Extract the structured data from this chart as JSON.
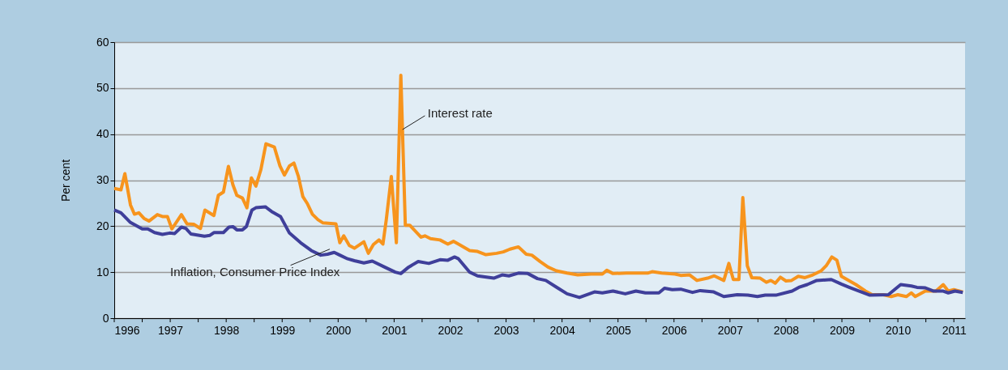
{
  "chart_data": {
    "type": "line",
    "ylabel": "Per cent",
    "xlim": [
      1996,
      2011.2
    ],
    "ylim": [
      0,
      60
    ],
    "yticks": [
      0,
      10,
      20,
      30,
      40,
      50,
      60
    ],
    "xticks": [
      1996,
      {
        "value": 1996.5,
        "label": null
      },
      1997,
      {
        "value": 1997.5,
        "label": null
      },
      1998,
      {
        "value": 1998.5,
        "label": null
      },
      1999,
      {
        "value": 1999.5,
        "label": null
      },
      2000,
      {
        "value": 2000.5,
        "label": null
      },
      2001,
      {
        "value": 2001.5,
        "label": null
      },
      2002,
      {
        "value": 2002.5,
        "label": null
      },
      2003,
      {
        "value": 2003.5,
        "label": null
      },
      2004,
      {
        "value": 2004.5,
        "label": null
      },
      2005,
      {
        "value": 2005.5,
        "label": null
      },
      2006,
      {
        "value": 2006.5,
        "label": null
      },
      2007,
      {
        "value": 2007.5,
        "label": null
      },
      2008,
      {
        "value": 2008.5,
        "label": null
      },
      2009,
      {
        "value": 2009.5,
        "label": null
      },
      2010,
      {
        "value": 2010.5,
        "label": null
      },
      2011
    ],
    "grid": "y",
    "marker": "none",
    "line_style": "solid",
    "series": [
      {
        "name": "Interest rate",
        "color": "#f7941d",
        "x": [
          1996.0,
          1996.12,
          1996.19,
          1996.29,
          1996.36,
          1996.44,
          1996.53,
          1996.62,
          1996.77,
          1996.86,
          1996.95,
          1997.03,
          1997.2,
          1997.3,
          1997.42,
          1997.54,
          1997.62,
          1997.78,
          1997.86,
          1997.95,
          1998.04,
          1998.12,
          1998.19,
          1998.29,
          1998.37,
          1998.45,
          1998.53,
          1998.62,
          1998.71,
          1998.86,
          1998.96,
          1999.04,
          1999.13,
          1999.21,
          1999.29,
          1999.37,
          1999.45,
          1999.54,
          1999.64,
          1999.73,
          1999.96,
          2000.03,
          2000.1,
          2000.2,
          2000.29,
          2000.46,
          2000.54,
          2000.63,
          2000.73,
          2000.8,
          2000.86,
          2000.95,
          2001.04,
          2001.12,
          2001.2,
          2001.28,
          2001.48,
          2001.55,
          2001.65,
          2001.82,
          2001.96,
          2002.06,
          2002.15,
          2002.35,
          2002.49,
          2002.64,
          2002.83,
          2002.95,
          2003.07,
          2003.22,
          2003.36,
          2003.46,
          2003.61,
          2003.75,
          2003.9,
          2004.09,
          2004.28,
          2004.52,
          2004.72,
          2004.8,
          2004.91,
          2005.15,
          2005.53,
          2005.61,
          2005.78,
          2006.02,
          2006.12,
          2006.28,
          2006.41,
          2006.6,
          2006.72,
          2006.89,
          2006.98,
          2007.06,
          2007.16,
          2007.23,
          2007.31,
          2007.39,
          2007.54,
          2007.65,
          2007.73,
          2007.81,
          2007.9,
          2008.0,
          2008.1,
          2008.22,
          2008.34,
          2008.48,
          2008.63,
          2008.72,
          2008.82,
          2008.91,
          2008.99,
          2009.25,
          2009.42,
          2009.54,
          2009.74,
          2009.88,
          2010.0,
          2010.15,
          2010.24,
          2010.31,
          2010.49,
          2010.68,
          2010.81,
          2010.9,
          2011.0,
          2011.16
        ],
        "values": [
          28.2,
          27.9,
          31.4,
          24.6,
          22.6,
          22.9,
          21.7,
          21.1,
          22.5,
          22.1,
          22.1,
          19.4,
          22.5,
          20.5,
          20.4,
          19.5,
          23.5,
          22.3,
          26.7,
          27.4,
          33.0,
          29.0,
          26.7,
          26.1,
          24.0,
          30.5,
          28.7,
          32.3,
          37.9,
          37.2,
          33.1,
          31.1,
          33.1,
          33.7,
          30.8,
          26.4,
          24.9,
          22.6,
          21.4,
          20.7,
          20.5,
          16.4,
          17.9,
          15.8,
          15.2,
          16.6,
          14.1,
          16.0,
          17.0,
          16.1,
          21.4,
          30.8,
          16.4,
          52.8,
          20.2,
          20.2,
          17.6,
          17.9,
          17.3,
          17.0,
          16.1,
          16.7,
          16.1,
          14.7,
          14.5,
          13.8,
          14.1,
          14.4,
          15.0,
          15.5,
          13.9,
          13.7,
          12.3,
          11.1,
          10.3,
          9.8,
          9.4,
          9.6,
          9.6,
          10.4,
          9.7,
          9.8,
          9.8,
          10.1,
          9.8,
          9.6,
          9.3,
          9.4,
          8.2,
          8.7,
          9.2,
          8.2,
          11.9,
          8.4,
          8.4,
          26.2,
          11.4,
          8.8,
          8.7,
          7.8,
          8.2,
          7.6,
          8.9,
          8.1,
          8.2,
          9.1,
          8.8,
          9.4,
          10.3,
          11.4,
          13.3,
          12.6,
          9.1,
          7.3,
          5.9,
          5.1,
          5.1,
          4.7,
          5.1,
          4.7,
          5.5,
          4.7,
          5.9,
          5.9,
          7.3,
          5.9,
          6.2,
          5.7
        ]
      },
      {
        "name": "Inflation, Consumer Price Index",
        "color": "#3f3f9a",
        "x": [
          1996.0,
          1996.12,
          1996.29,
          1996.5,
          1996.6,
          1996.72,
          1996.86,
          1996.99,
          1997.08,
          1997.2,
          1997.28,
          1997.37,
          1997.61,
          1997.71,
          1997.78,
          1997.95,
          1998.05,
          1998.12,
          1998.19,
          1998.29,
          1998.36,
          1998.46,
          1998.53,
          1998.7,
          1998.81,
          1998.97,
          1999.13,
          1999.33,
          1999.52,
          1999.69,
          1999.81,
          1999.93,
          2000.03,
          2000.17,
          2000.29,
          2000.46,
          2000.61,
          2000.83,
          2001.02,
          2001.12,
          2001.26,
          2001.43,
          2001.62,
          2001.82,
          2001.96,
          2002.08,
          2002.15,
          2002.35,
          2002.49,
          2002.78,
          2002.93,
          2003.05,
          2003.22,
          2003.39,
          2003.56,
          2003.71,
          2003.93,
          2004.09,
          2004.31,
          2004.58,
          2004.72,
          2004.91,
          2005.13,
          2005.32,
          2005.49,
          2005.73,
          2005.83,
          2005.97,
          2006.12,
          2006.33,
          2006.47,
          2006.71,
          2006.89,
          2007.13,
          2007.32,
          2007.49,
          2007.63,
          2007.82,
          2008.11,
          2008.23,
          2008.38,
          2008.55,
          2008.81,
          2008.99,
          2009.13,
          2009.3,
          2009.5,
          2009.83,
          2010.05,
          2010.24,
          2010.34,
          2010.49,
          2010.63,
          2010.8,
          2010.9,
          2011.02,
          2011.16
        ],
        "values": [
          23.5,
          22.9,
          20.8,
          19.4,
          19.4,
          18.6,
          18.2,
          18.5,
          18.4,
          19.8,
          19.5,
          18.3,
          17.8,
          18.0,
          18.6,
          18.6,
          19.8,
          19.9,
          19.2,
          19.2,
          19.9,
          23.5,
          24.0,
          24.2,
          23.2,
          22.1,
          18.5,
          16.4,
          14.7,
          13.7,
          13.9,
          14.3,
          13.7,
          12.9,
          12.5,
          12.0,
          12.4,
          11.1,
          10.0,
          9.7,
          11.1,
          12.3,
          11.9,
          12.7,
          12.6,
          13.3,
          12.9,
          10.0,
          9.2,
          8.7,
          9.4,
          9.2,
          9.8,
          9.7,
          8.6,
          8.2,
          6.5,
          5.3,
          4.5,
          5.7,
          5.5,
          5.9,
          5.3,
          5.9,
          5.5,
          5.5,
          6.5,
          6.2,
          6.3,
          5.6,
          6.0,
          5.7,
          4.7,
          5.1,
          5.0,
          4.7,
          5.0,
          5.0,
          5.9,
          6.7,
          7.3,
          8.2,
          8.4,
          7.4,
          6.7,
          5.9,
          5.0,
          5.1,
          7.3,
          7.0,
          6.7,
          6.6,
          5.9,
          5.9,
          5.5,
          5.9,
          5.6
        ]
      }
    ]
  }
}
